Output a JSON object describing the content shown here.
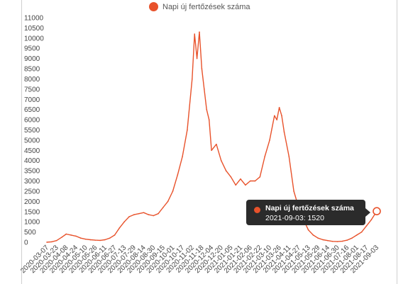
{
  "legend": {
    "label": "Napi új fertőzések száma"
  },
  "colors": {
    "series": "#e8522b",
    "tooltip_bg": "#2b2b2b"
  },
  "tooltip": {
    "title": "Napi új fertőzések száma",
    "body": "2021-09-03: 1520"
  },
  "chart_data": {
    "type": "line",
    "legend_position": "top",
    "grid": false,
    "ylim": [
      0,
      11000
    ],
    "y_ticks": [
      "0",
      "500",
      "1000",
      "1500",
      "2000",
      "2500",
      "3000",
      "3500",
      "4000",
      "4500",
      "5000",
      "5500",
      "6000",
      "6500",
      "7000",
      "7500",
      "8000",
      "8500",
      "9000",
      "9500",
      "10000",
      "10500",
      "11000"
    ],
    "x_ticks": [
      "2020-03-07",
      "2020-03-23",
      "2020-04-08",
      "2020-04-24",
      "2020-05-10",
      "2020-05-26",
      "2020-06-11",
      "2020-06-27",
      "2020-07-13",
      "2020-07-29",
      "2020-08-14",
      "2020-08-30",
      "2020-09-15",
      "2020-10-01",
      "2020-10-17",
      "2020-11-02",
      "2020-11-18",
      "2020-12-04",
      "2020-12-20",
      "2021-01-05",
      "2021-01-21",
      "2021-02-06",
      "2021-02-22",
      "2021-03-10",
      "2021-03-26",
      "2021-04-11",
      "2021-04-27",
      "2021-05-13",
      "2021-05-29",
      "2021-06-14",
      "2021-06-30",
      "2021-07-16",
      "2021-08-01",
      "2021-08-17",
      "2021-09-03"
    ],
    "series": [
      {
        "name": "Napi új fertőzések száma",
        "color": "#e8522b",
        "x": [
          "2020-03-07",
          "2020-03-15",
          "2020-03-23",
          "2020-04-01",
          "2020-04-08",
          "2020-04-16",
          "2020-04-24",
          "2020-05-02",
          "2020-05-10",
          "2020-05-18",
          "2020-05-26",
          "2020-06-03",
          "2020-06-11",
          "2020-06-19",
          "2020-06-27",
          "2020-07-05",
          "2020-07-13",
          "2020-07-21",
          "2020-07-29",
          "2020-08-06",
          "2020-08-14",
          "2020-08-22",
          "2020-08-30",
          "2020-09-07",
          "2020-09-15",
          "2020-09-23",
          "2020-10-01",
          "2020-10-09",
          "2020-10-17",
          "2020-10-25",
          "2020-11-02",
          "2020-11-06",
          "2020-11-10",
          "2020-11-14",
          "2020-11-18",
          "2020-11-22",
          "2020-11-26",
          "2020-11-30",
          "2020-12-04",
          "2020-12-12",
          "2020-12-20",
          "2020-12-28",
          "2021-01-05",
          "2021-01-13",
          "2021-01-21",
          "2021-01-29",
          "2021-02-06",
          "2021-02-14",
          "2021-02-22",
          "2021-03-02",
          "2021-03-10",
          "2021-03-18",
          "2021-03-22",
          "2021-03-26",
          "2021-03-30",
          "2021-04-03",
          "2021-04-11",
          "2021-04-19",
          "2021-04-27",
          "2021-05-05",
          "2021-05-13",
          "2021-05-21",
          "2021-05-29",
          "2021-06-06",
          "2021-06-14",
          "2021-06-22",
          "2021-06-30",
          "2021-07-08",
          "2021-07-16",
          "2021-07-24",
          "2021-08-01",
          "2021-08-09",
          "2021-08-17",
          "2021-08-25",
          "2021-09-03"
        ],
        "y": [
          0,
          20,
          80,
          250,
          400,
          350,
          300,
          200,
          150,
          120,
          100,
          90,
          120,
          200,
          350,
          700,
          1000,
          1250,
          1350,
          1400,
          1450,
          1350,
          1300,
          1400,
          1700,
          2000,
          2500,
          3300,
          4200,
          5500,
          8000,
          10200,
          9000,
          10300,
          8500,
          7500,
          6500,
          6000,
          4500,
          4800,
          4000,
          3500,
          3200,
          2800,
          3100,
          2800,
          3000,
          3000,
          3200,
          4200,
          5000,
          6200,
          6000,
          6600,
          6200,
          5400,
          4200,
          2500,
          1700,
          1100,
          600,
          350,
          200,
          120,
          80,
          40,
          30,
          50,
          100,
          200,
          350,
          500,
          800,
          1100,
          1520
        ]
      }
    ],
    "highlight": {
      "x": "2021-09-03",
      "y": 1520
    }
  }
}
